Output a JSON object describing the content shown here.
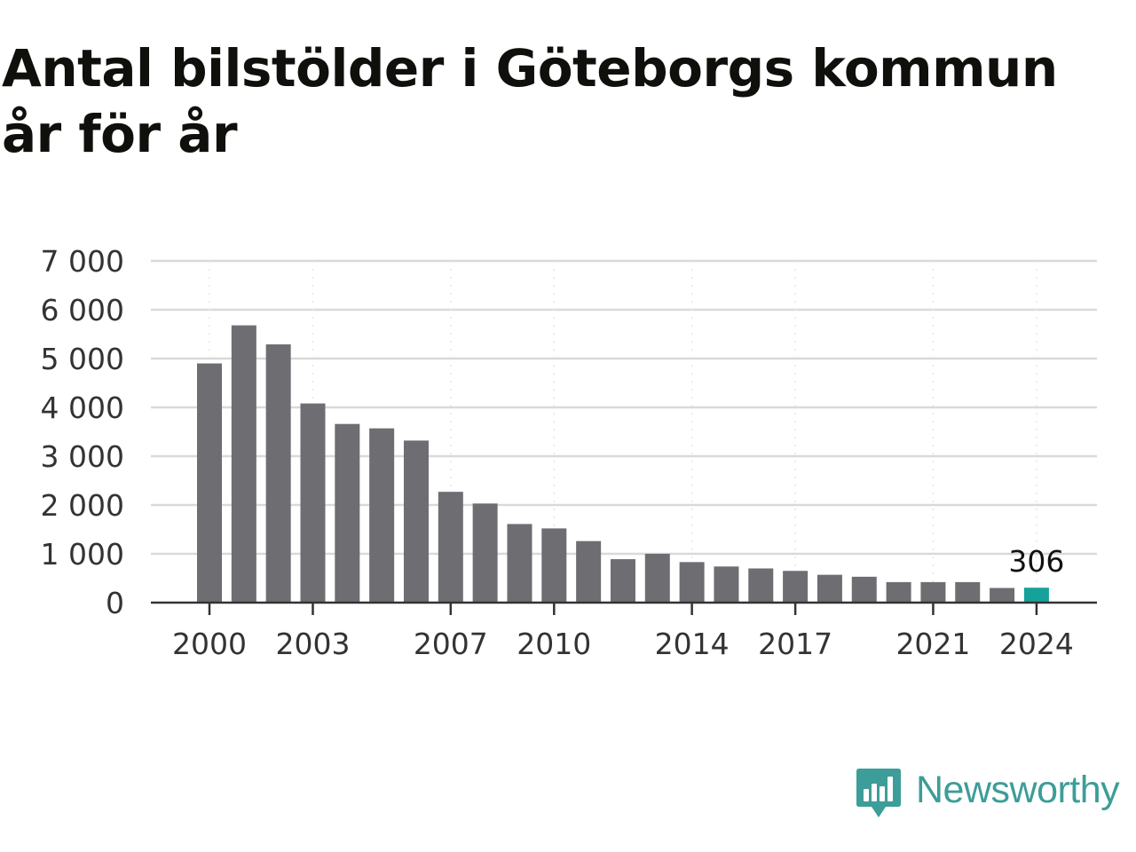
{
  "title": "Antal bilstölder i Göteborgs kommun år för år",
  "brand": {
    "name": "Newsworthy",
    "color": "#3d9d98",
    "icon": "newsworthy-bar-chart-icon"
  },
  "colors": {
    "bar": "#6e6d72",
    "highlight": "#16a29a",
    "grid": "#d9d9d9",
    "axis": "#333333",
    "tick_text": "#333333"
  },
  "chart_data": {
    "type": "bar",
    "title": "Antal bilstölder i Göteborgs kommun år för år",
    "xlabel": "",
    "ylabel": "",
    "categories": [
      "2000",
      "2001",
      "2002",
      "2003",
      "2004",
      "2005",
      "2006",
      "2007",
      "2008",
      "2009",
      "2010",
      "2011",
      "2012",
      "2013",
      "2014",
      "2015",
      "2016",
      "2017",
      "2018",
      "2019",
      "2020",
      "2021",
      "2022",
      "2023",
      "2024"
    ],
    "values": [
      4900,
      5680,
      5290,
      4080,
      3660,
      3570,
      3320,
      2270,
      2030,
      1610,
      1520,
      1260,
      890,
      1000,
      830,
      740,
      700,
      650,
      570,
      530,
      420,
      420,
      420,
      300,
      306
    ],
    "ylim": [
      0,
      7000
    ],
    "yticks": [
      0,
      1000,
      2000,
      3000,
      4000,
      5000,
      6000,
      7000
    ],
    "ytick_labels": [
      "0",
      "1 000",
      "2 000",
      "3 000",
      "4 000",
      "5 000",
      "6 000",
      "7 000"
    ],
    "xtick_labels": [
      "2000",
      "2003",
      "2007",
      "2010",
      "2014",
      "2017",
      "2021",
      "2024"
    ],
    "highlight": {
      "category": "2024",
      "label": "306"
    },
    "grid": true,
    "legend": "none"
  }
}
